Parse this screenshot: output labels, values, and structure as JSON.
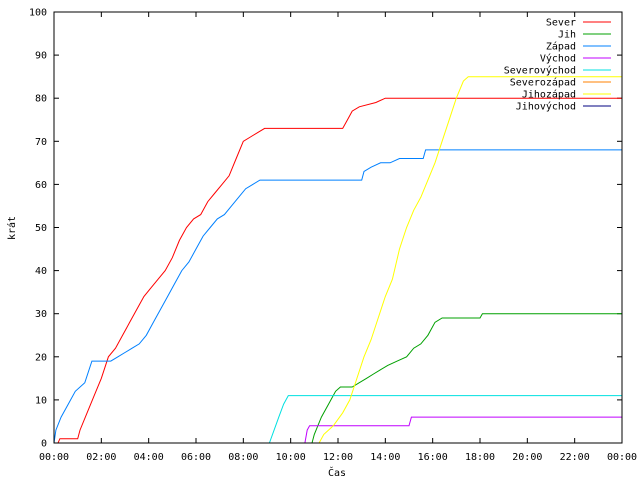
{
  "chart_data": {
    "type": "line",
    "xlabel": "Čas",
    "ylabel": "krát",
    "xlim": [
      0,
      24
    ],
    "ylim": [
      0,
      100
    ],
    "x_ticks": [
      {
        "value": 0,
        "label": "00:00"
      },
      {
        "value": 2,
        "label": "02:00"
      },
      {
        "value": 4,
        "label": "04:00"
      },
      {
        "value": 6,
        "label": "06:00"
      },
      {
        "value": 8,
        "label": "08:00"
      },
      {
        "value": 10,
        "label": "10:00"
      },
      {
        "value": 12,
        "label": "12:00"
      },
      {
        "value": 14,
        "label": "14:00"
      },
      {
        "value": 16,
        "label": "16:00"
      },
      {
        "value": 18,
        "label": "18:00"
      },
      {
        "value": 20,
        "label": "20:00"
      },
      {
        "value": 22,
        "label": "22:00"
      },
      {
        "value": 24,
        "label": "00:00"
      }
    ],
    "y_ticks": [
      0,
      10,
      20,
      30,
      40,
      50,
      60,
      70,
      80,
      90,
      100
    ],
    "grid": false,
    "legend_position": "top-right",
    "series": [
      {
        "name": "Sever",
        "color": "#ff0000",
        "points": [
          [
            0,
            0
          ],
          [
            0.17,
            0
          ],
          [
            0.25,
            1
          ],
          [
            1.0,
            1
          ],
          [
            1.1,
            3
          ],
          [
            1.4,
            7
          ],
          [
            1.7,
            11
          ],
          [
            2.0,
            15
          ],
          [
            2.3,
            20
          ],
          [
            2.6,
            22
          ],
          [
            2.9,
            25
          ],
          [
            3.2,
            28
          ],
          [
            3.5,
            31
          ],
          [
            3.8,
            34
          ],
          [
            4.1,
            36
          ],
          [
            4.4,
            38
          ],
          [
            4.7,
            40
          ],
          [
            5.0,
            43
          ],
          [
            5.3,
            47
          ],
          [
            5.6,
            50
          ],
          [
            5.9,
            52
          ],
          [
            6.2,
            53
          ],
          [
            6.5,
            56
          ],
          [
            6.8,
            58
          ],
          [
            7.1,
            60
          ],
          [
            7.4,
            62
          ],
          [
            7.7,
            66
          ],
          [
            8.0,
            70
          ],
          [
            8.3,
            71
          ],
          [
            8.6,
            72
          ],
          [
            8.9,
            73
          ],
          [
            12.2,
            73
          ],
          [
            12.4,
            75
          ],
          [
            12.6,
            77
          ],
          [
            12.9,
            78
          ],
          [
            13.6,
            79
          ],
          [
            14.0,
            80
          ],
          [
            24,
            80
          ]
        ]
      },
      {
        "name": "Jih",
        "color": "#00a000",
        "points": [
          [
            0,
            0
          ],
          [
            10.9,
            0
          ],
          [
            11.0,
            2
          ],
          [
            11.3,
            6
          ],
          [
            11.6,
            9
          ],
          [
            11.9,
            12
          ],
          [
            12.1,
            13
          ],
          [
            12.6,
            13
          ],
          [
            12.9,
            14
          ],
          [
            13.2,
            15
          ],
          [
            13.5,
            16
          ],
          [
            13.8,
            17
          ],
          [
            14.1,
            18
          ],
          [
            14.5,
            19
          ],
          [
            14.9,
            20
          ],
          [
            15.2,
            22
          ],
          [
            15.5,
            23
          ],
          [
            15.8,
            25
          ],
          [
            16.1,
            28
          ],
          [
            16.4,
            29
          ],
          [
            18.0,
            29
          ],
          [
            18.1,
            30
          ],
          [
            24,
            30
          ]
        ]
      },
      {
        "name": "Západ",
        "color": "#0080ff",
        "points": [
          [
            0,
            0
          ],
          [
            0.08,
            3
          ],
          [
            0.3,
            6
          ],
          [
            0.6,
            9
          ],
          [
            0.9,
            12
          ],
          [
            1.3,
            14
          ],
          [
            1.6,
            19
          ],
          [
            2.4,
            19
          ],
          [
            2.7,
            20
          ],
          [
            3.0,
            21
          ],
          [
            3.3,
            22
          ],
          [
            3.6,
            23
          ],
          [
            3.9,
            25
          ],
          [
            4.2,
            28
          ],
          [
            4.5,
            31
          ],
          [
            4.8,
            34
          ],
          [
            5.1,
            37
          ],
          [
            5.4,
            40
          ],
          [
            5.7,
            42
          ],
          [
            6.0,
            45
          ],
          [
            6.3,
            48
          ],
          [
            6.6,
            50
          ],
          [
            6.9,
            52
          ],
          [
            7.2,
            53
          ],
          [
            7.5,
            55
          ],
          [
            7.8,
            57
          ],
          [
            8.1,
            59
          ],
          [
            8.4,
            60
          ],
          [
            8.7,
            61
          ],
          [
            13.0,
            61
          ],
          [
            13.1,
            63
          ],
          [
            13.4,
            64
          ],
          [
            13.8,
            65
          ],
          [
            14.2,
            65
          ],
          [
            14.6,
            66
          ],
          [
            15.6,
            66
          ],
          [
            15.7,
            68
          ],
          [
            24,
            68
          ]
        ]
      },
      {
        "name": "Východ",
        "color": "#c000ff",
        "points": [
          [
            0,
            0
          ],
          [
            10.6,
            0
          ],
          [
            10.7,
            3
          ],
          [
            10.8,
            4
          ],
          [
            15.0,
            4
          ],
          [
            15.1,
            6
          ],
          [
            24,
            6
          ]
        ]
      },
      {
        "name": "Severovýchod",
        "color": "#00e0e0",
        "points": [
          [
            0,
            0
          ],
          [
            9.1,
            0
          ],
          [
            9.3,
            3
          ],
          [
            9.5,
            6
          ],
          [
            9.7,
            9
          ],
          [
            9.9,
            11
          ],
          [
            24,
            11
          ]
        ]
      },
      {
        "name": "Severozápad",
        "color": "#ff8000",
        "points": []
      },
      {
        "name": "Jihozápad",
        "color": "#ffff00",
        "points": [
          [
            0,
            0
          ],
          [
            11.2,
            0
          ],
          [
            11.4,
            2
          ],
          [
            11.8,
            4
          ],
          [
            12.2,
            7
          ],
          [
            12.5,
            10
          ],
          [
            12.8,
            15
          ],
          [
            13.1,
            20
          ],
          [
            13.4,
            24
          ],
          [
            13.7,
            29
          ],
          [
            14.0,
            34
          ],
          [
            14.3,
            38
          ],
          [
            14.6,
            45
          ],
          [
            14.9,
            50
          ],
          [
            15.2,
            54
          ],
          [
            15.5,
            57
          ],
          [
            15.8,
            61
          ],
          [
            16.1,
            65
          ],
          [
            16.4,
            70
          ],
          [
            16.7,
            75
          ],
          [
            17.0,
            80
          ],
          [
            17.3,
            84
          ],
          [
            17.5,
            85
          ],
          [
            24,
            85
          ]
        ]
      },
      {
        "name": "Jihovýchod",
        "color": "#000080",
        "points": []
      }
    ]
  }
}
